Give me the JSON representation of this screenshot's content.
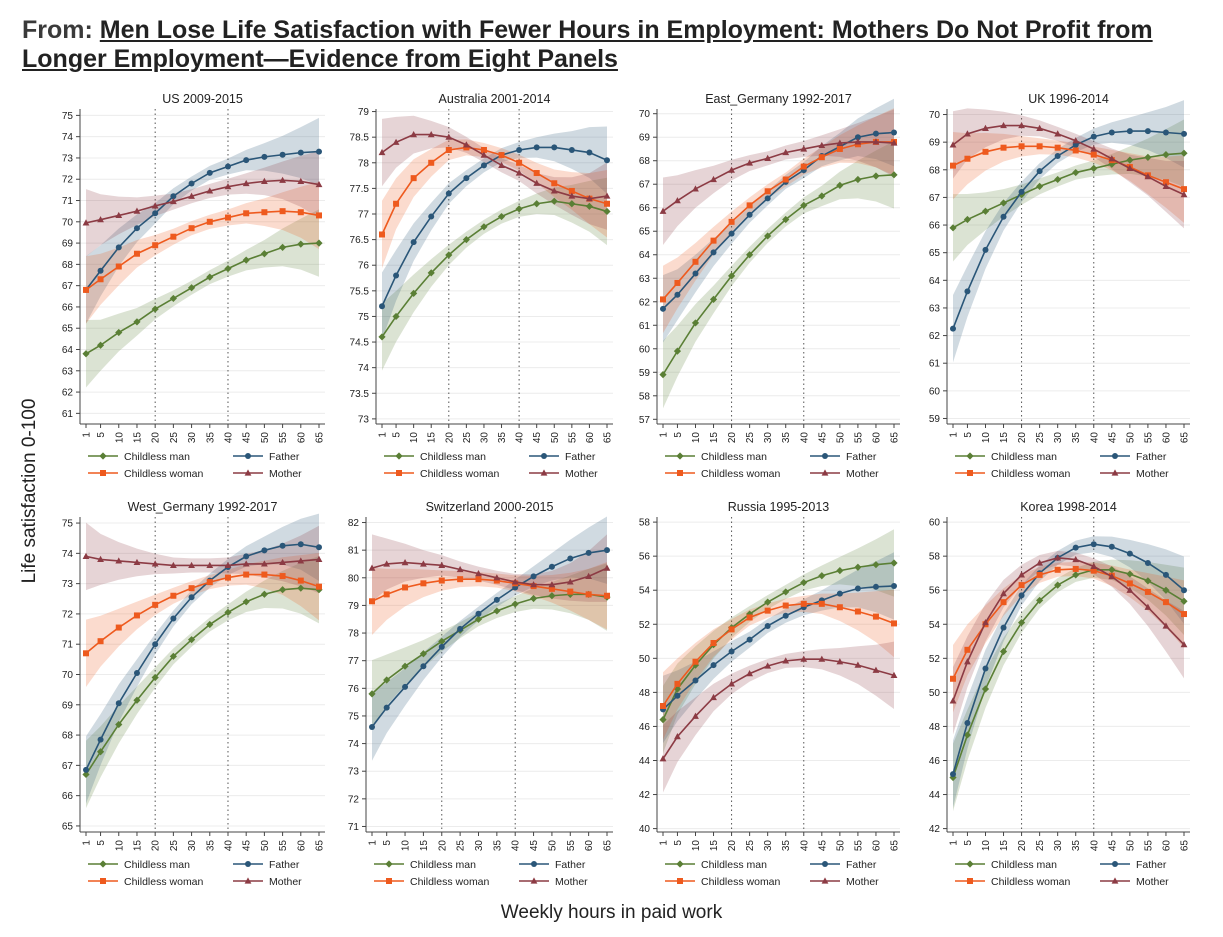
{
  "header": {
    "prefix": "From:",
    "title": "Men Lose Life Satisfaction with Fewer Hours in Employment: Mothers Do Not Profit from Longer Employment—Evidence from Eight Panels"
  },
  "axis_labels": {
    "y": "Life satisfaction 0-100",
    "x": "Weekly hours in paid work"
  },
  "series_style": [
    {
      "name": "Childless man",
      "color": "#5a7f35",
      "marker": "diamond"
    },
    {
      "name": "Father",
      "color": "#2a5678",
      "marker": "circle"
    },
    {
      "name": "Childless woman",
      "color": "#ee5a1e",
      "marker": "square"
    },
    {
      "name": "Mother",
      "color": "#8c3b44",
      "marker": "triangle"
    }
  ],
  "chart_data": [
    {
      "type": "line",
      "title": "US 2009-2015",
      "ylim": [
        60.5,
        75.3
      ],
      "yticks": [
        61,
        62,
        63,
        64,
        65,
        66,
        67,
        68,
        69,
        70,
        71,
        72,
        73,
        74,
        75
      ],
      "x": [
        1,
        5,
        10,
        15,
        20,
        25,
        30,
        35,
        40,
        45,
        50,
        55,
        60,
        65
      ],
      "vlines": [
        20,
        40
      ],
      "series": [
        {
          "name": "Childless man",
          "values": [
            63.8,
            64.2,
            64.8,
            65.3,
            65.9,
            66.4,
            66.9,
            67.4,
            67.8,
            68.2,
            68.5,
            68.8,
            68.95,
            69.0
          ]
        },
        {
          "name": "Father",
          "values": [
            66.8,
            67.7,
            68.8,
            69.7,
            70.4,
            71.2,
            71.8,
            72.3,
            72.6,
            72.9,
            73.05,
            73.15,
            73.25,
            73.3
          ]
        },
        {
          "name": "Childless woman",
          "values": [
            66.8,
            67.3,
            67.9,
            68.5,
            68.9,
            69.3,
            69.7,
            70.0,
            70.2,
            70.4,
            70.45,
            70.5,
            70.45,
            70.3
          ]
        },
        {
          "name": "Mother",
          "values": [
            69.95,
            70.1,
            70.3,
            70.5,
            70.75,
            70.95,
            71.2,
            71.45,
            71.65,
            71.8,
            71.9,
            71.95,
            71.9,
            71.75
          ]
        }
      ]
    },
    {
      "type": "line",
      "title": "Australia 2001-2014",
      "ylim": [
        72.9,
        79.05
      ],
      "yticks": [
        73,
        73.5,
        74,
        74.5,
        75,
        75.5,
        76,
        76.5,
        77,
        77.5,
        78,
        78.5,
        79
      ],
      "x": [
        1,
        5,
        10,
        15,
        20,
        25,
        30,
        35,
        40,
        45,
        50,
        55,
        60,
        65
      ],
      "vlines": [
        20,
        40
      ],
      "series": [
        {
          "name": "Childless man",
          "values": [
            74.6,
            75.0,
            75.45,
            75.85,
            76.2,
            76.5,
            76.75,
            76.95,
            77.1,
            77.2,
            77.25,
            77.2,
            77.15,
            77.05
          ]
        },
        {
          "name": "Father",
          "values": [
            75.2,
            75.8,
            76.45,
            76.95,
            77.4,
            77.7,
            77.95,
            78.15,
            78.25,
            78.3,
            78.3,
            78.25,
            78.2,
            78.05
          ]
        },
        {
          "name": "Childless woman",
          "values": [
            76.6,
            77.2,
            77.7,
            78.0,
            78.25,
            78.3,
            78.25,
            78.15,
            78.0,
            77.8,
            77.6,
            77.45,
            77.3,
            77.2
          ]
        },
        {
          "name": "Mother",
          "values": [
            78.2,
            78.4,
            78.55,
            78.55,
            78.5,
            78.35,
            78.15,
            77.95,
            77.8,
            77.6,
            77.45,
            77.35,
            77.3,
            77.35
          ]
        }
      ]
    },
    {
      "type": "line",
      "title": "East_Germany 1992-2017",
      "ylim": [
        56.8,
        70.2
      ],
      "yticks": [
        57,
        58,
        59,
        60,
        61,
        62,
        63,
        64,
        65,
        66,
        67,
        68,
        69,
        70
      ],
      "x": [
        1,
        5,
        10,
        15,
        20,
        25,
        30,
        35,
        40,
        45,
        50,
        55,
        60,
        65
      ],
      "vlines": [
        20,
        40
      ],
      "series": [
        {
          "name": "Childless man",
          "values": [
            58.9,
            59.9,
            61.1,
            62.1,
            63.1,
            64.0,
            64.8,
            65.5,
            66.1,
            66.5,
            66.95,
            67.2,
            67.35,
            67.4
          ]
        },
        {
          "name": "Father",
          "values": [
            61.7,
            62.3,
            63.2,
            64.1,
            64.9,
            65.7,
            66.4,
            67.1,
            67.6,
            68.2,
            68.6,
            69.0,
            69.15,
            69.2
          ]
        },
        {
          "name": "Childless woman",
          "values": [
            62.1,
            62.8,
            63.7,
            64.6,
            65.4,
            66.1,
            66.7,
            67.2,
            67.75,
            68.15,
            68.5,
            68.7,
            68.8,
            68.8
          ]
        },
        {
          "name": "Mother",
          "values": [
            65.85,
            66.3,
            66.8,
            67.2,
            67.6,
            67.9,
            68.1,
            68.35,
            68.5,
            68.65,
            68.75,
            68.8,
            68.8,
            68.75
          ]
        }
      ]
    },
    {
      "type": "line",
      "title": "UK 1996-2014",
      "ylim": [
        58.8,
        70.2
      ],
      "yticks": [
        59,
        60,
        61,
        62,
        63,
        64,
        65,
        66,
        67,
        68,
        69,
        70
      ],
      "x": [
        1,
        5,
        10,
        15,
        20,
        25,
        30,
        35,
        40,
        45,
        50,
        55,
        60,
        65
      ],
      "vlines": [
        20,
        40
      ],
      "series": [
        {
          "name": "Childless man",
          "values": [
            65.9,
            66.2,
            66.5,
            66.8,
            67.1,
            67.4,
            67.65,
            67.9,
            68.05,
            68.2,
            68.35,
            68.45,
            68.55,
            68.6
          ]
        },
        {
          "name": "Father",
          "values": [
            62.25,
            63.6,
            65.1,
            66.3,
            67.2,
            67.95,
            68.5,
            68.9,
            69.2,
            69.35,
            69.4,
            69.4,
            69.35,
            69.3
          ]
        },
        {
          "name": "Childless woman",
          "values": [
            68.15,
            68.4,
            68.65,
            68.8,
            68.85,
            68.85,
            68.8,
            68.7,
            68.55,
            68.35,
            68.1,
            67.8,
            67.55,
            67.3
          ]
        },
        {
          "name": "Mother",
          "values": [
            68.9,
            69.3,
            69.5,
            69.6,
            69.6,
            69.5,
            69.3,
            69.05,
            68.75,
            68.4,
            68.05,
            67.75,
            67.4,
            67.1
          ]
        }
      ]
    },
    {
      "type": "line",
      "title": "West_Germany 1992-2017",
      "ylim": [
        64.8,
        75.2
      ],
      "yticks": [
        65,
        66,
        67,
        68,
        69,
        70,
        71,
        72,
        73,
        74,
        75
      ],
      "x": [
        1,
        5,
        10,
        15,
        20,
        25,
        30,
        35,
        40,
        45,
        50,
        55,
        60,
        65
      ],
      "vlines": [
        20,
        40
      ],
      "series": [
        {
          "name": "Childless man",
          "values": [
            66.7,
            67.45,
            68.35,
            69.15,
            69.9,
            70.6,
            71.15,
            71.65,
            72.05,
            72.4,
            72.65,
            72.8,
            72.85,
            72.8
          ]
        },
        {
          "name": "Father",
          "values": [
            66.85,
            67.85,
            69.05,
            70.05,
            71.0,
            71.85,
            72.55,
            73.1,
            73.55,
            73.9,
            74.1,
            74.25,
            74.3,
            74.2
          ]
        },
        {
          "name": "Childless woman",
          "values": [
            70.7,
            71.1,
            71.55,
            71.95,
            72.3,
            72.6,
            72.85,
            73.05,
            73.2,
            73.3,
            73.3,
            73.25,
            73.1,
            72.9
          ]
        },
        {
          "name": "Mother",
          "values": [
            73.9,
            73.8,
            73.75,
            73.7,
            73.65,
            73.6,
            73.6,
            73.6,
            73.6,
            73.65,
            73.65,
            73.7,
            73.75,
            73.8
          ]
        }
      ]
    },
    {
      "type": "line",
      "title": "Switzerland 2000-2015",
      "ylim": [
        70.8,
        82.2
      ],
      "yticks": [
        71,
        72,
        73,
        74,
        75,
        76,
        77,
        78,
        79,
        80,
        81,
        82
      ],
      "x": [
        1,
        5,
        10,
        15,
        20,
        25,
        30,
        35,
        40,
        45,
        50,
        55,
        60,
        65
      ],
      "vlines": [
        20,
        40
      ],
      "series": [
        {
          "name": "Childless man",
          "values": [
            75.8,
            76.3,
            76.8,
            77.25,
            77.7,
            78.1,
            78.5,
            78.8,
            79.05,
            79.25,
            79.35,
            79.4,
            79.4,
            79.3
          ]
        },
        {
          "name": "Father",
          "values": [
            74.6,
            75.3,
            76.05,
            76.8,
            77.5,
            78.15,
            78.7,
            79.2,
            79.65,
            80.05,
            80.4,
            80.7,
            80.9,
            81.0
          ]
        },
        {
          "name": "Childless woman",
          "values": [
            79.15,
            79.4,
            79.65,
            79.8,
            79.9,
            79.95,
            79.95,
            79.9,
            79.8,
            79.7,
            79.6,
            79.5,
            79.4,
            79.35
          ]
        },
        {
          "name": "Mother",
          "values": [
            80.35,
            80.5,
            80.55,
            80.5,
            80.45,
            80.3,
            80.15,
            80.0,
            79.85,
            79.75,
            79.75,
            79.85,
            80.05,
            80.35
          ]
        }
      ]
    },
    {
      "type": "line",
      "title": "Russia 1995-2013",
      "ylim": [
        39.8,
        58.3
      ],
      "yticks": [
        40,
        42,
        44,
        46,
        48,
        50,
        52,
        54,
        56,
        58
      ],
      "x": [
        1,
        5,
        10,
        15,
        20,
        25,
        30,
        35,
        40,
        45,
        50,
        55,
        60,
        65
      ],
      "vlines": [
        20,
        40
      ],
      "series": [
        {
          "name": "Childless man",
          "values": [
            46.4,
            48.2,
            49.6,
            50.8,
            51.8,
            52.6,
            53.3,
            53.9,
            54.45,
            54.85,
            55.15,
            55.35,
            55.5,
            55.6
          ]
        },
        {
          "name": "Father",
          "values": [
            47.0,
            47.8,
            48.7,
            49.6,
            50.4,
            51.1,
            51.9,
            52.5,
            53.0,
            53.4,
            53.8,
            54.1,
            54.2,
            54.25
          ]
        },
        {
          "name": "Childless woman",
          "values": [
            47.2,
            48.5,
            49.8,
            50.9,
            51.7,
            52.4,
            52.8,
            53.1,
            53.2,
            53.2,
            53.0,
            52.75,
            52.45,
            52.05
          ]
        },
        {
          "name": "Mother",
          "values": [
            44.1,
            45.4,
            46.6,
            47.7,
            48.5,
            49.1,
            49.55,
            49.85,
            49.95,
            49.95,
            49.8,
            49.6,
            49.3,
            49.0
          ]
        }
      ]
    },
    {
      "type": "line",
      "title": "Korea 1998-2014",
      "ylim": [
        41.8,
        60.3
      ],
      "yticks": [
        42,
        44,
        46,
        48,
        50,
        52,
        54,
        56,
        58,
        60
      ],
      "x": [
        1,
        5,
        10,
        15,
        20,
        25,
        30,
        35,
        40,
        45,
        50,
        55,
        60,
        65
      ],
      "vlines": [
        20,
        40
      ],
      "series": [
        {
          "name": "Childless man",
          "values": [
            45.0,
            47.5,
            50.2,
            52.4,
            54.1,
            55.4,
            56.3,
            56.9,
            57.2,
            57.2,
            56.95,
            56.55,
            56.0,
            55.35
          ]
        },
        {
          "name": "Father",
          "values": [
            45.2,
            48.2,
            51.4,
            53.8,
            55.7,
            57.0,
            57.9,
            58.5,
            58.7,
            58.55,
            58.15,
            57.6,
            56.9,
            56.0
          ]
        },
        {
          "name": "Childless woman",
          "values": [
            50.8,
            52.5,
            54.0,
            55.3,
            56.3,
            56.9,
            57.2,
            57.25,
            57.15,
            56.85,
            56.4,
            55.9,
            55.3,
            54.6
          ]
        },
        {
          "name": "Mother",
          "values": [
            49.5,
            51.8,
            54.1,
            55.8,
            56.9,
            57.6,
            57.9,
            57.8,
            57.4,
            56.8,
            56.0,
            55.0,
            53.9,
            52.8
          ]
        }
      ]
    }
  ]
}
